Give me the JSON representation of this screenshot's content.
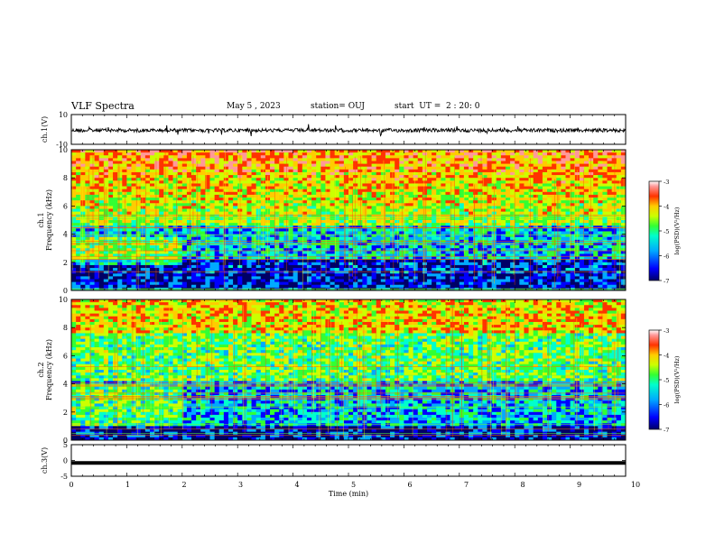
{
  "header": {
    "title": "VLF Spectra",
    "date": "May 5 , 2023",
    "station": "station= OUJ",
    "start": "start  UT =  2 : 20: 0"
  },
  "chart_data": [
    {
      "type": "line",
      "panel": "ch1-waveform",
      "ylabel": "ch.1(V)",
      "ylim": [
        -10,
        10
      ],
      "yticks": [
        "10",
        "-10"
      ],
      "xlim": [
        0,
        10
      ],
      "baseline": 0,
      "series": [
        {
          "values_note_level": 0,
          "noise_amplitude": 1.5
        }
      ],
      "color": "#000000"
    },
    {
      "type": "heatmap",
      "panel": "ch1-spectrogram",
      "ylabel_line1": "ch.1",
      "ylabel_line2": "Frequency (kHz)",
      "ylim": [
        0,
        10
      ],
      "yticks": [
        "0",
        "2",
        "4",
        "6",
        "8",
        "10"
      ],
      "xlim": [
        0,
        10
      ],
      "colorbar": {
        "label": "log(PSD)(V²/Hz)",
        "range": [
          -7,
          -3
        ],
        "ticks": [
          "-3",
          "-4",
          "-5",
          "-6",
          "-7"
        ],
        "colors": [
          "#000066",
          "#0000ff",
          "#00aaff",
          "#00ffcc",
          "#33ff33",
          "#ccff00",
          "#ffcc00",
          "#ff3300",
          "#ff9999",
          "#ffffff"
        ]
      },
      "bright_band_khz": [
        4,
        10
      ],
      "dark_band_khz": [
        0,
        4
      ]
    },
    {
      "type": "heatmap",
      "panel": "ch2-spectrogram",
      "ylabel_line1": "ch.2",
      "ylabel_line2": "Frequency (kHz)",
      "ylim": [
        0,
        10
      ],
      "yticks": [
        "0",
        "2",
        "4",
        "6",
        "8",
        "10"
      ],
      "xlim": [
        0,
        10
      ],
      "colorbar": {
        "label": "log(PSD)(V²/Hz)",
        "range": [
          -7,
          -3
        ],
        "ticks": [
          "-3",
          "-4",
          "-5",
          "-6",
          "-7"
        ],
        "colors": [
          "#000066",
          "#0000ff",
          "#00aaff",
          "#00ffcc",
          "#33ff33",
          "#ccff00",
          "#ffcc00",
          "#ff3300",
          "#ff9999",
          "#ffffff"
        ]
      }
    },
    {
      "type": "line",
      "panel": "ch3-waveform",
      "ylabel": "ch.3(V)",
      "ylim": [
        -5,
        5
      ],
      "yticks": [
        "5",
        "0",
        "-5"
      ],
      "xlim": [
        0,
        10
      ],
      "level": -0.8,
      "color": "#000000"
    }
  ],
  "xaxis": {
    "label": "Time  (min)",
    "ticks": [
      "0",
      "1",
      "2",
      "3",
      "4",
      "5",
      "6",
      "7",
      "8",
      "9",
      "10"
    ]
  },
  "palette": [
    "#000066",
    "#0000ff",
    "#00aaff",
    "#00ffcc",
    "#33ff33",
    "#ccff00",
    "#ffcc00",
    "#ff3300",
    "#ff9999",
    "#ffffff"
  ]
}
